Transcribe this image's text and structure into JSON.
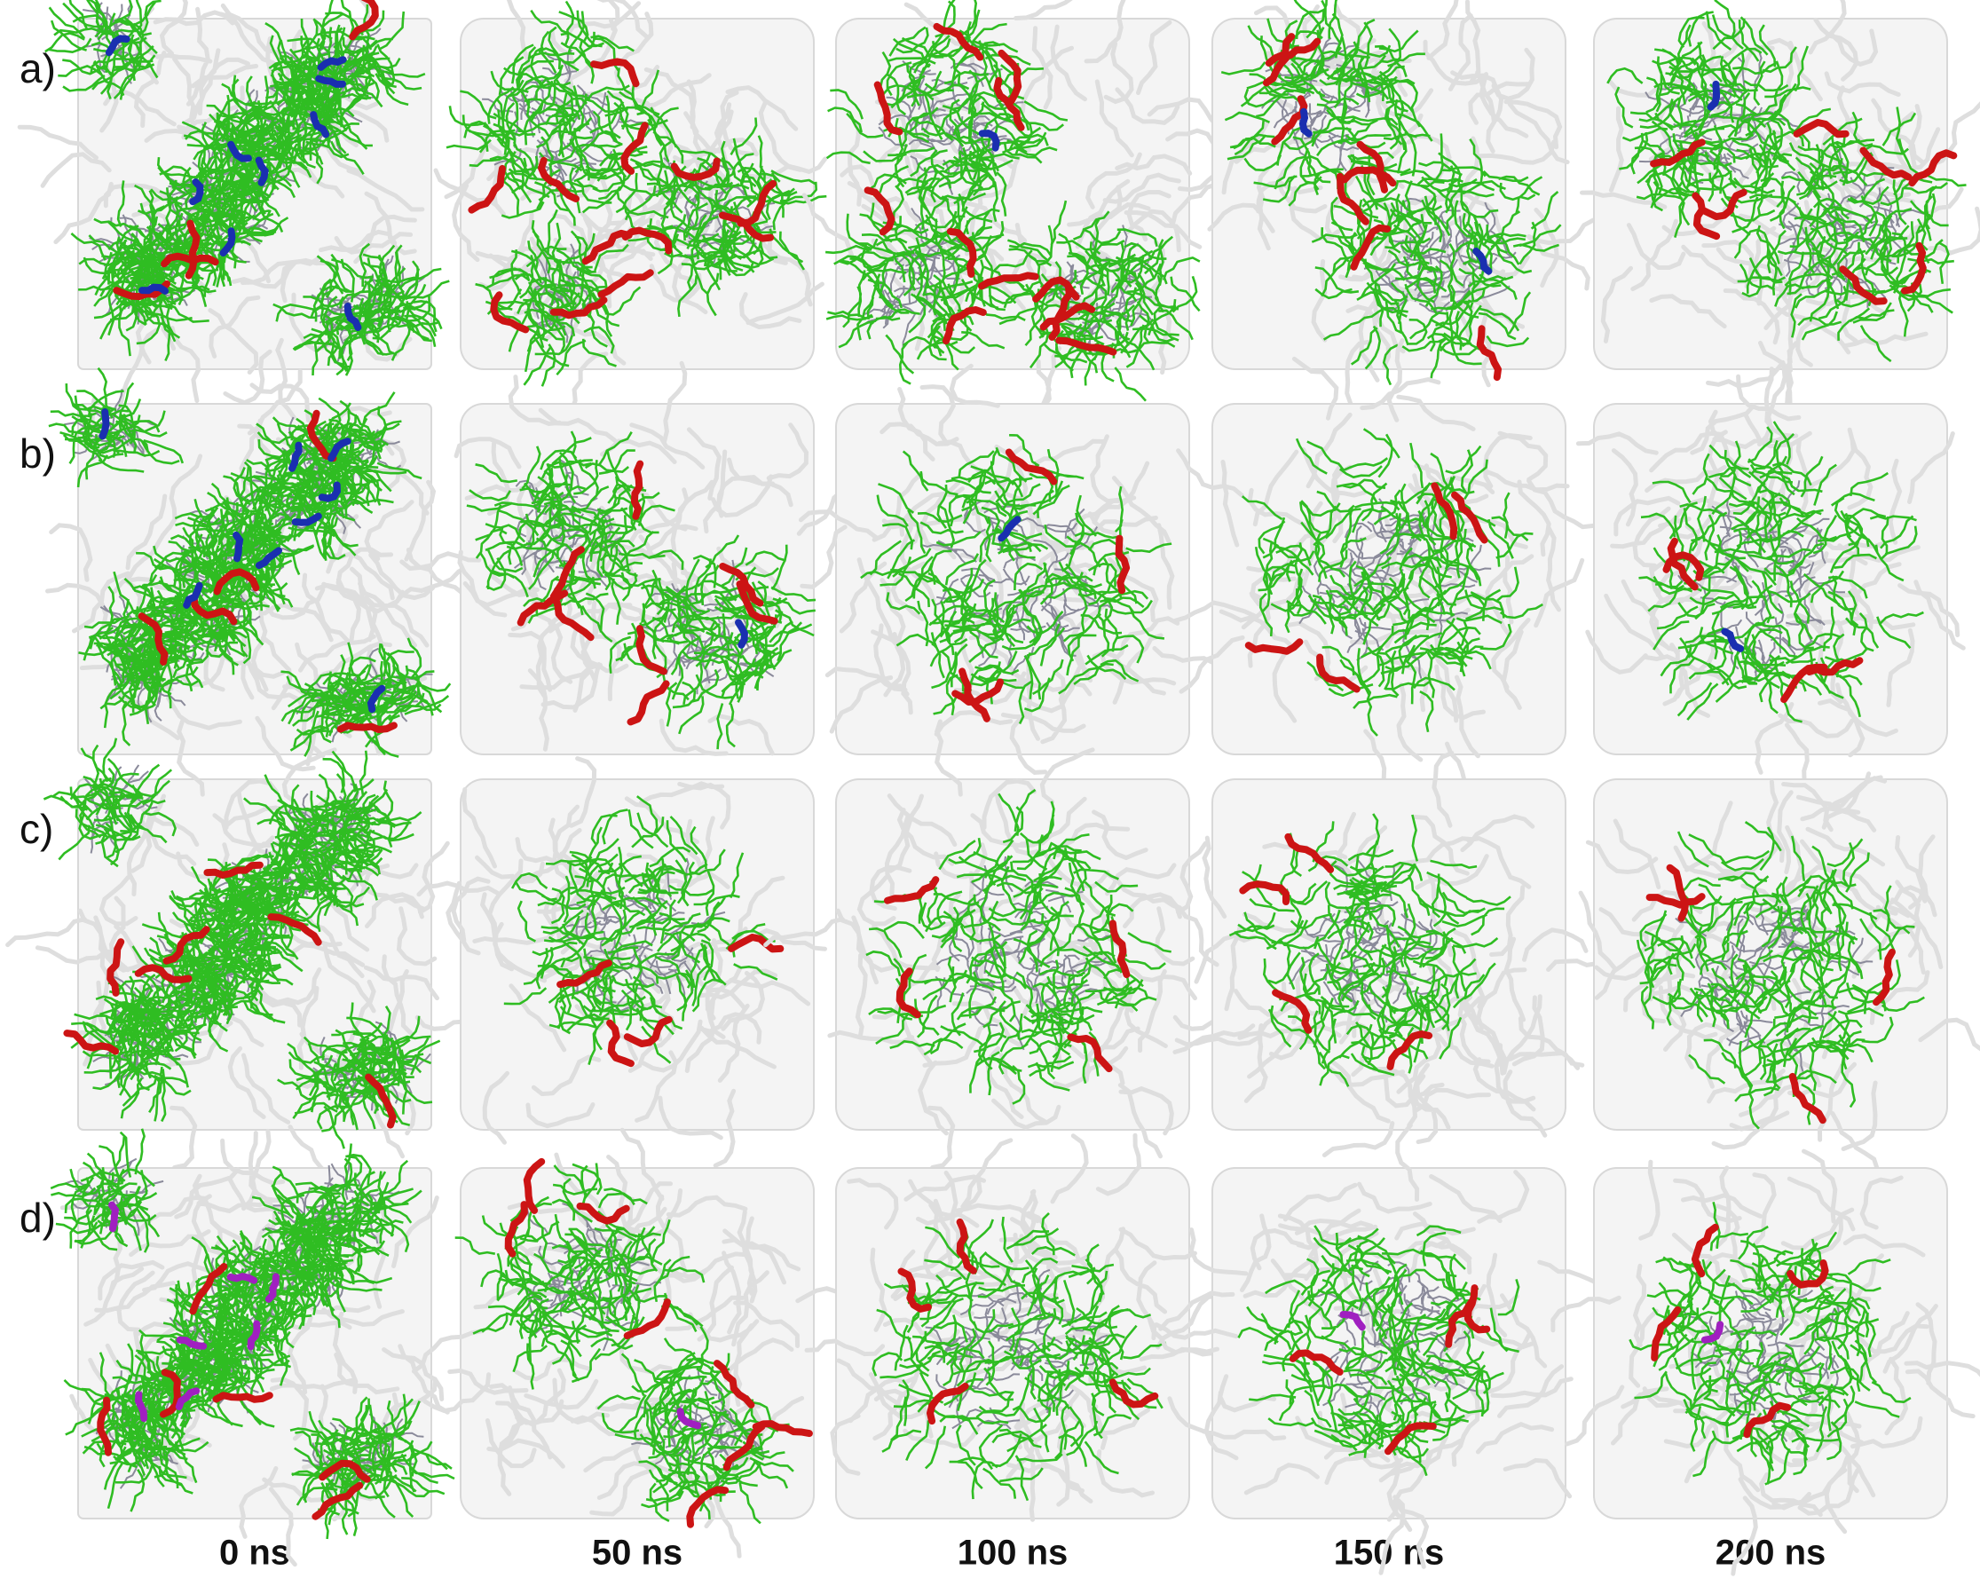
{
  "row_labels": [
    "a)",
    "b)",
    "c)",
    "d)"
  ],
  "column_labels": [
    "0 ns",
    "50 ns",
    "100 ns",
    "150 ns",
    "200 ns"
  ]
}
